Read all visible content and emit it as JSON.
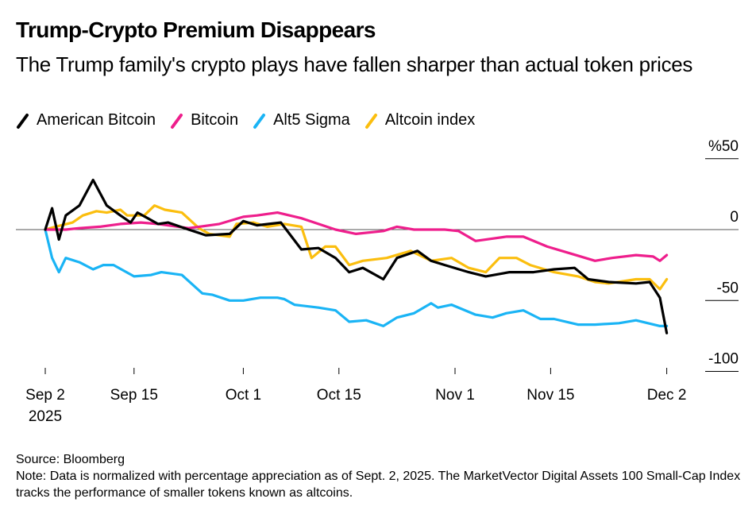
{
  "header": {
    "title": "Trump-Crypto Premium Disappears",
    "subtitle": "The Trump family's crypto plays have fallen sharper than actual token prices"
  },
  "legend": [
    {
      "label": "American Bitcoin",
      "color": "#000000",
      "icon": "slash-icon"
    },
    {
      "label": "Bitcoin",
      "color": "#ee1e8c",
      "icon": "slash-icon"
    },
    {
      "label": "Alt5 Sigma",
      "color": "#1ab4f5",
      "icon": "slash-icon"
    },
    {
      "label": "Altcoin index",
      "color": "#fbbe0e",
      "icon": "slash-icon"
    }
  ],
  "footer": {
    "source": "Source: Bloomberg",
    "note": "Note: Data is normalized with percentage appreciation as of Sept. 2, 2025. The MarketVector Digital Assets 100 Small-Cap Index tracks the performance of smaller tokens known as altcoins."
  },
  "chart_data": {
    "type": "line",
    "title": "Trump-Crypto Premium Disappears",
    "subtitle": "The Trump family's crypto plays have fallen sharper than actual token prices",
    "xlabel": "",
    "ylabel": "%",
    "x_unit": "days since Sep 2, 2025",
    "xlim": [
      0,
      91
    ],
    "ylim": [
      -100,
      50
    ],
    "y_ticks": [
      {
        "value": 50,
        "label": "%50"
      },
      {
        "value": 0,
        "label": "0"
      },
      {
        "value": -50,
        "label": "-50"
      },
      {
        "value": -100,
        "label": "-100"
      }
    ],
    "x_ticks": [
      {
        "day": 0,
        "label": "Sep 2",
        "sublabel": "2025"
      },
      {
        "day": 13,
        "label": "Sep 15",
        "sublabel": ""
      },
      {
        "day": 29,
        "label": "Oct 1",
        "sublabel": ""
      },
      {
        "day": 43,
        "label": "Oct 15",
        "sublabel": ""
      },
      {
        "day": 60,
        "label": "Nov 1",
        "sublabel": ""
      },
      {
        "day": 74,
        "label": "Nov 15",
        "sublabel": ""
      },
      {
        "day": 91,
        "label": "Dec 2",
        "sublabel": ""
      }
    ],
    "grid": false,
    "legend_position": "top-left",
    "series": [
      {
        "name": "American Bitcoin",
        "color": "#000000",
        "x": [
          0,
          1,
          2,
          3,
          5,
          7,
          9,
          11,
          12.5,
          13.5,
          15,
          16.5,
          18,
          21,
          23.5,
          27,
          29,
          31,
          34.5,
          37.5,
          40,
          42.5,
          44.5,
          46.5,
          49.5,
          51.5,
          54.5,
          56.5,
          58.5,
          62,
          64.5,
          68,
          71.5,
          74.5,
          77.5,
          79.5,
          82.5,
          86.5,
          88.5,
          90,
          91
        ],
        "values": [
          0,
          15,
          -7,
          10,
          17,
          35,
          17,
          10,
          5,
          12,
          8,
          4,
          5,
          0,
          -4,
          -3,
          6,
          3,
          5,
          -14,
          -13,
          -20,
          -30,
          -27,
          -35,
          -20,
          -15,
          -22,
          -25,
          -30,
          -33,
          -30,
          -30,
          -28,
          -27,
          -35,
          -37,
          -38,
          -37,
          -48,
          -73
        ]
      },
      {
        "name": "Bitcoin",
        "color": "#ee1e8c",
        "x": [
          0,
          3,
          5,
          8,
          11,
          14,
          16.5,
          21,
          25.5,
          29,
          31,
          34,
          37.5,
          42.5,
          45.5,
          49.5,
          51.5,
          54,
          58.5,
          60.5,
          63,
          67.5,
          70,
          73.5,
          77,
          80.5,
          83,
          86.5,
          89,
          90,
          91
        ],
        "values": [
          0,
          0,
          1,
          2,
          4,
          5,
          4,
          1,
          4,
          9,
          10,
          12,
          8,
          0,
          -3,
          -1,
          2,
          0,
          0,
          -1,
          -8,
          -5,
          -5,
          -12,
          -17,
          -22,
          -20,
          -18,
          -19,
          -22,
          -18
        ]
      },
      {
        "name": "Alt5 Sigma",
        "color": "#1ab4f5",
        "x": [
          0,
          1,
          2,
          3,
          5,
          7,
          8.5,
          10,
          13,
          15.5,
          17,
          20,
          23,
          24.5,
          27,
          29,
          31.5,
          34,
          35,
          36.5,
          40,
          42.5,
          44.5,
          47,
          49.5,
          51.5,
          54,
          56.5,
          57.5,
          59.5,
          63,
          65.5,
          67.5,
          70,
          72.5,
          74.5,
          78,
          80.5,
          84,
          86.5,
          90,
          91
        ],
        "values": [
          0,
          -20,
          -30,
          -20,
          -23,
          -28,
          -25,
          -25,
          -33,
          -32,
          -30,
          -32,
          -45,
          -46,
          -50,
          -50,
          -48,
          -48,
          -49,
          -53,
          -55,
          -57,
          -65,
          -64,
          -68,
          -62,
          -59,
          -52,
          -55,
          -53,
          -60,
          -62,
          -59,
          -57,
          -63,
          -63,
          -67,
          -67,
          -66,
          -64,
          -68,
          -68
        ]
      },
      {
        "name": "Altcoin index",
        "color": "#fbbe0e",
        "x": [
          0,
          1.5,
          4,
          5.5,
          7.5,
          9,
          11,
          12,
          14.5,
          16,
          17.5,
          20,
          22.5,
          24,
          27,
          28,
          30.5,
          32.5,
          35,
          37.5,
          39,
          41,
          42.5,
          44.5,
          46.5,
          50,
          53.5,
          56.5,
          59.5,
          62,
          64.5,
          66.5,
          69,
          71,
          74.5,
          78,
          80.5,
          82.5,
          86.5,
          88.5,
          90,
          91
        ],
        "values": [
          0,
          2,
          5,
          10,
          13,
          12,
          14,
          10,
          10,
          17,
          14,
          12,
          1,
          -3,
          -5,
          4,
          5,
          2,
          4,
          2,
          -20,
          -12,
          -12,
          -25,
          -22,
          -20,
          -15,
          -22,
          -20,
          -27,
          -30,
          -20,
          -20,
          -25,
          -30,
          -33,
          -37,
          -38,
          -35,
          -35,
          -42,
          -35
        ]
      }
    ]
  }
}
